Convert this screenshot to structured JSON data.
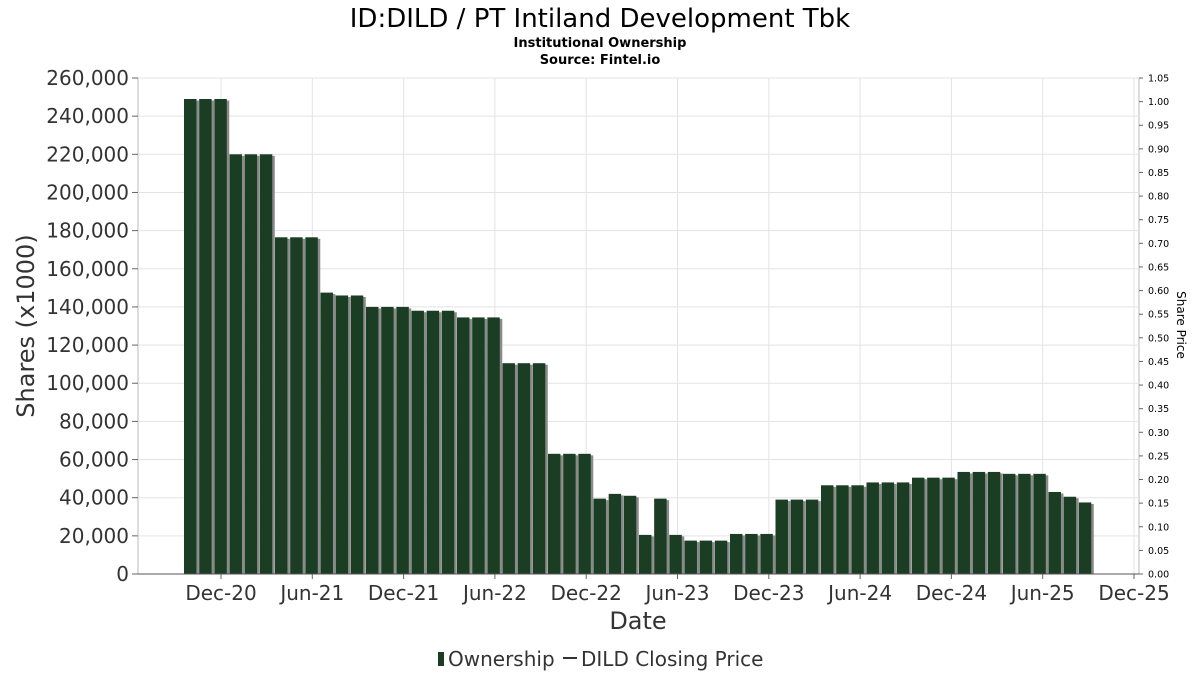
{
  "chart_data": {
    "type": "bar",
    "title": "ID:DILD / PT Intiland Development Tbk",
    "subtitle": "Institutional Ownership",
    "source": "Source: Fintel.io",
    "xlabel": "Date",
    "ylabel": "Shares (x1000)",
    "y2label": "Share Price",
    "ylim": [
      0,
      260000
    ],
    "y_ticks": [
      "0",
      "20,000",
      "40,000",
      "60,000",
      "80,000",
      "100,000",
      "120,000",
      "140,000",
      "160,000",
      "180,000",
      "200,000",
      "220,000",
      "240,000",
      "260,000"
    ],
    "y2lim": [
      0,
      1.05
    ],
    "y2_ticks": [
      "0.00",
      "0.05",
      "0.10",
      "0.15",
      "0.20",
      "0.25",
      "0.30",
      "0.35",
      "0.40",
      "0.45",
      "0.50",
      "0.55",
      "0.60",
      "0.65",
      "0.70",
      "0.75",
      "0.80",
      "0.85",
      "0.90",
      "0.95",
      "1.00",
      "1.05"
    ],
    "x_ticks": [
      "Dec-20",
      "Jun-21",
      "Dec-21",
      "Jun-22",
      "Dec-22",
      "Jun-23",
      "Dec-23",
      "Jun-24",
      "Dec-24",
      "Jun-25",
      "Dec-25"
    ],
    "grid": true,
    "legend_position": "bottom-center",
    "series": [
      {
        "name": "Ownership",
        "color": "#1a3d23",
        "values": [
          249000,
          249000,
          249000,
          220000,
          220000,
          220000,
          176500,
          176500,
          176500,
          147500,
          146000,
          146000,
          140000,
          140000,
          140000,
          138000,
          138000,
          138000,
          134500,
          134500,
          134500,
          110500,
          110500,
          110500,
          63000,
          63000,
          63000,
          39500,
          42000,
          41000,
          20500,
          39500,
          20500,
          17500,
          17500,
          17500,
          21000,
          21000,
          21000,
          39000,
          39000,
          39000,
          46500,
          46500,
          46500,
          48000,
          48000,
          48000,
          50500,
          50500,
          50500,
          53500,
          53500,
          53500,
          52500,
          52500,
          52500,
          43000,
          40500,
          37500
        ]
      },
      {
        "name": "DILD Closing Price",
        "color": "#333333",
        "values": []
      }
    ]
  }
}
